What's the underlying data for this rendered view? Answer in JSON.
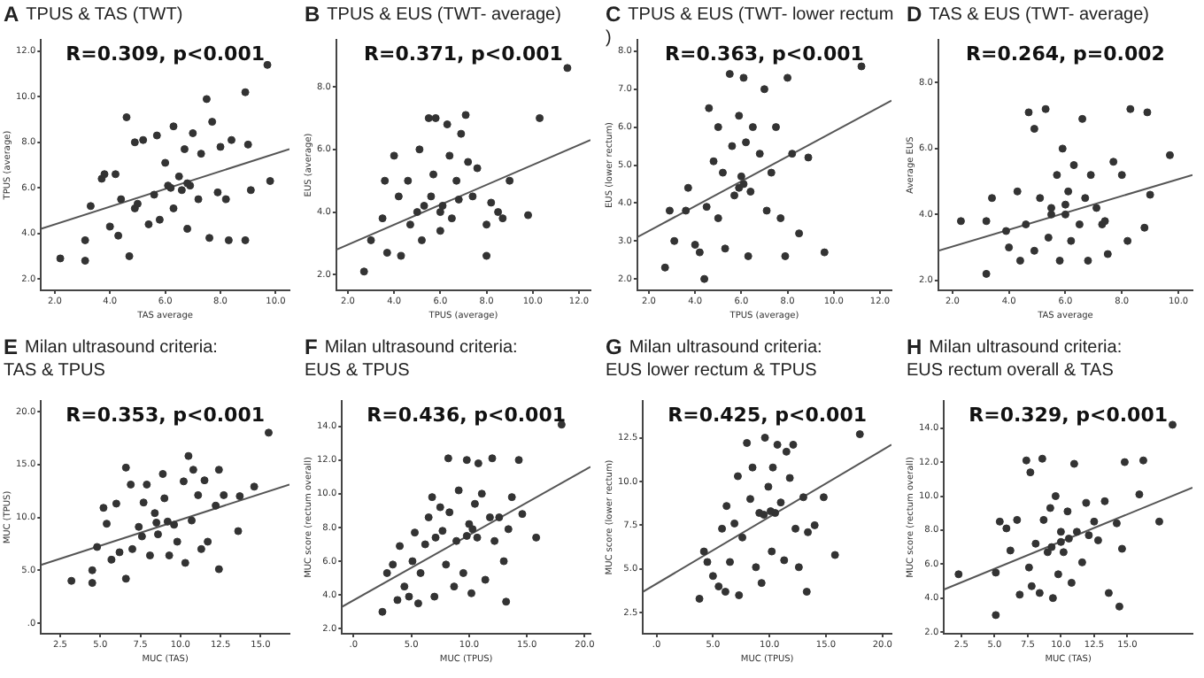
{
  "chart_data": [
    {
      "type": "scatter",
      "title": "TPUS & TAS (TWT)",
      "annotations": [
        "A",
        "R=0.309, p<0.001"
      ],
      "xlabel": "TAS average",
      "ylabel": "TPUS (average)",
      "xlim": [
        1.5,
        10.5
      ],
      "ylim": [
        1.5,
        12.5
      ],
      "xticks": [
        {
          "value": 2,
          "label": "2.0"
        },
        {
          "value": 4,
          "label": "4.0"
        },
        {
          "value": 6,
          "label": "6.0"
        },
        {
          "value": 8,
          "label": "8.0"
        },
        {
          "value": 10,
          "label": "10.0"
        }
      ],
      "yticks": [
        {
          "value": 2,
          "label": "2.0"
        },
        {
          "value": 4,
          "label": "4.0"
        },
        {
          "value": 6,
          "label": "6.0"
        },
        {
          "value": 8,
          "label": "8.0"
        },
        {
          "value": 10,
          "label": "10.0"
        },
        {
          "value": 12,
          "label": "12.0"
        }
      ],
      "series": [
        {
          "type": "scatter",
          "marker": "circle",
          "color": "#333333",
          "x": [
            2.2,
            3.1,
            3.1,
            3.3,
            3.7,
            3.8,
            4.2,
            4.0,
            4.3,
            4.4,
            4.7,
            4.6,
            4.9,
            4.9,
            5.2,
            5.4,
            5.7,
            5.8,
            6.0,
            6.1,
            6.3,
            6.3,
            6.5,
            6.7,
            6.8,
            6.9,
            7.0,
            7.2,
            7.3,
            7.5,
            7.6,
            7.7,
            7.9,
            8.0,
            8.2,
            8.3,
            8.4,
            8.9,
            8.9,
            9.0,
            9.1,
            9.7,
            9.8,
            6.2,
            6.6,
            5.6,
            6.8,
            5.0
          ],
          "values": [
            2.9,
            2.8,
            3.7,
            5.2,
            6.4,
            6.6,
            6.6,
            4.3,
            3.9,
            5.5,
            3.0,
            9.1,
            8.0,
            5.1,
            8.1,
            4.4,
            8.3,
            4.6,
            7.1,
            6.1,
            8.7,
            5.1,
            6.5,
            7.7,
            4.2,
            6.1,
            8.4,
            5.5,
            7.5,
            9.9,
            3.8,
            8.9,
            5.8,
            7.8,
            5.5,
            3.7,
            8.1,
            10.2,
            3.7,
            7.9,
            5.9,
            11.4,
            6.3,
            6.0,
            5.9,
            5.7,
            6.2,
            5.3
          ]
        },
        {
          "type": "line",
          "marker": "none",
          "color": "#555555",
          "x": [
            1.5,
            10.5
          ],
          "values": [
            4.2,
            7.7
          ]
        }
      ]
    },
    {
      "type": "scatter",
      "title": "TPUS & EUS (TWT- average)",
      "annotations": [
        "B",
        "R=0.371, p<0.001"
      ],
      "xlabel": "TPUS (average)",
      "ylabel": "EUS (average)",
      "xlim": [
        1.5,
        12.5
      ],
      "ylim": [
        1.5,
        9.5
      ],
      "xticks": [
        {
          "value": 2,
          "label": "2.0"
        },
        {
          "value": 4,
          "label": "4.0"
        },
        {
          "value": 6,
          "label": "6.0"
        },
        {
          "value": 8,
          "label": "8.0"
        },
        {
          "value": 10,
          "label": "10.0"
        },
        {
          "value": 12,
          "label": "12.0"
        }
      ],
      "yticks": [
        {
          "value": 2,
          "label": "2.0"
        },
        {
          "value": 4,
          "label": "4.0"
        },
        {
          "value": 6,
          "label": "6.0"
        },
        {
          "value": 8,
          "label": "8.0"
        }
      ],
      "series": [
        {
          "type": "scatter",
          "marker": "circle",
          "color": "#333333",
          "x": [
            2.7,
            3.0,
            3.5,
            3.6,
            3.7,
            4.0,
            4.2,
            4.3,
            4.6,
            4.7,
            5.0,
            5.1,
            5.2,
            5.5,
            5.6,
            5.7,
            5.8,
            6.0,
            6.1,
            6.3,
            6.4,
            6.5,
            6.7,
            6.9,
            7.1,
            7.2,
            7.4,
            7.6,
            8.0,
            8.0,
            8.2,
            8.5,
            8.7,
            9.0,
            9.8,
            10.3,
            11.5,
            6.0,
            5.3,
            6.8
          ],
          "values": [
            2.1,
            3.1,
            3.8,
            5.0,
            2.7,
            5.8,
            4.5,
            2.6,
            5.0,
            3.6,
            4.0,
            6.0,
            3.1,
            7.0,
            4.5,
            5.2,
            7.0,
            3.4,
            4.2,
            6.8,
            5.8,
            3.8,
            5.0,
            6.5,
            7.1,
            5.6,
            4.5,
            5.4,
            3.6,
            2.6,
            4.3,
            4.0,
            3.8,
            5.0,
            3.9,
            7.0,
            8.6,
            4.0,
            4.2,
            4.4
          ]
        },
        {
          "type": "line",
          "marker": "none",
          "color": "#555555",
          "x": [
            1.5,
            12.5
          ],
          "values": [
            2.8,
            6.3
          ]
        }
      ]
    },
    {
      "type": "scatter",
      "title": "TPUS & EUS (TWT- lower rectum )",
      "annotations": [
        "C",
        "R=0.363, p<0.001"
      ],
      "xlabel": "TPUS (average)",
      "ylabel": "EUS (lower rectum)",
      "xlim": [
        1.5,
        12.5
      ],
      "ylim": [
        1.7,
        8.3
      ],
      "xticks": [
        {
          "value": 2,
          "label": "2.0"
        },
        {
          "value": 4,
          "label": "4.0"
        },
        {
          "value": 6,
          "label": "6.0"
        },
        {
          "value": 8,
          "label": "8.0"
        },
        {
          "value": 10,
          "label": "10.0"
        },
        {
          "value": 12,
          "label": "12.0"
        }
      ],
      "yticks": [
        {
          "value": 2,
          "label": "2.0"
        },
        {
          "value": 3,
          "label": "3.0"
        },
        {
          "value": 4,
          "label": "4.0"
        },
        {
          "value": 5,
          "label": "5.0"
        },
        {
          "value": 6,
          "label": "6.0"
        },
        {
          "value": 7,
          "label": "7.0"
        },
        {
          "value": 8,
          "label": "8.0"
        }
      ],
      "series": [
        {
          "type": "scatter",
          "marker": "circle",
          "color": "#333333",
          "x": [
            2.7,
            2.9,
            3.1,
            3.6,
            3.7,
            4.0,
            4.2,
            4.4,
            4.5,
            4.6,
            4.8,
            5.0,
            5.0,
            5.2,
            5.3,
            5.5,
            5.6,
            5.7,
            5.9,
            6.0,
            6.1,
            6.2,
            6.3,
            6.4,
            6.5,
            6.8,
            7.0,
            7.1,
            7.3,
            7.5,
            7.7,
            8.0,
            7.9,
            8.2,
            8.5,
            8.9,
            9.6,
            11.2,
            5.9,
            6.1
          ],
          "values": [
            2.3,
            3.8,
            3.0,
            3.8,
            4.4,
            2.9,
            2.7,
            2.0,
            3.9,
            6.5,
            5.1,
            3.6,
            6.0,
            4.8,
            2.8,
            7.4,
            5.5,
            4.2,
            6.3,
            4.7,
            7.3,
            5.6,
            2.6,
            4.3,
            6.0,
            5.3,
            7.0,
            3.8,
            4.8,
            6.0,
            3.6,
            7.3,
            2.6,
            5.3,
            3.2,
            5.2,
            2.7,
            7.6,
            4.4,
            4.5
          ]
        },
        {
          "type": "line",
          "marker": "none",
          "color": "#555555",
          "x": [
            1.5,
            12.5
          ],
          "values": [
            3.1,
            6.7
          ]
        }
      ]
    },
    {
      "type": "scatter",
      "title": "TAS & EUS (TWT- average)",
      "annotations": [
        "D",
        "R=0.264, p=0.002"
      ],
      "xlabel": "TAS average",
      "ylabel": "Average EUS",
      "xlim": [
        1.5,
        10.5
      ],
      "ylim": [
        1.7,
        9.3
      ],
      "xticks": [
        {
          "value": 2,
          "label": "2.0"
        },
        {
          "value": 4,
          "label": "4.0"
        },
        {
          "value": 6,
          "label": "6.0"
        },
        {
          "value": 8,
          "label": "8.0"
        },
        {
          "value": 10,
          "label": "10.0"
        }
      ],
      "yticks": [
        {
          "value": 2,
          "label": "2.0"
        },
        {
          "value": 4,
          "label": "4.0"
        },
        {
          "value": 6,
          "label": "6.0"
        },
        {
          "value": 8,
          "label": "8.0"
        }
      ],
      "series": [
        {
          "type": "scatter",
          "marker": "circle",
          "color": "#333333",
          "x": [
            2.3,
            3.2,
            3.2,
            3.4,
            3.9,
            4.0,
            4.3,
            4.4,
            4.6,
            4.7,
            4.9,
            4.9,
            5.1,
            5.3,
            5.4,
            5.5,
            5.7,
            5.8,
            5.9,
            6.0,
            6.1,
            6.2,
            6.3,
            6.5,
            6.6,
            6.7,
            6.8,
            6.9,
            7.1,
            7.3,
            7.4,
            7.5,
            7.7,
            8.0,
            8.2,
            8.3,
            8.8,
            8.9,
            9.0,
            9.7,
            5.5,
            6.0
          ],
          "values": [
            3.8,
            2.2,
            3.8,
            4.5,
            3.5,
            3.0,
            4.7,
            2.6,
            3.7,
            7.1,
            6.6,
            2.9,
            4.5,
            7.2,
            3.3,
            4.2,
            5.2,
            2.6,
            6.0,
            4.0,
            4.7,
            3.2,
            5.5,
            3.7,
            6.9,
            4.5,
            2.6,
            5.2,
            4.2,
            3.7,
            3.8,
            2.8,
            5.6,
            5.2,
            3.2,
            7.2,
            3.6,
            7.1,
            4.6,
            5.8,
            4.0,
            4.3
          ]
        },
        {
          "type": "line",
          "marker": "none",
          "color": "#555555",
          "x": [
            1.5,
            10.5
          ],
          "values": [
            2.9,
            5.2
          ]
        }
      ]
    },
    {
      "type": "scatter",
      "title": "Milan ultrasound criteria:\nTAS & TPUS",
      "annotations": [
        "E",
        "R=0.353, p<0.001"
      ],
      "xlabel": "MUC (TAS)",
      "ylabel": "MUC (TPUS)",
      "xlim": [
        1.3,
        16.8
      ],
      "ylim": [
        -1,
        21
      ],
      "xticks": [
        {
          "value": 2.5,
          "label": "2.5"
        },
        {
          "value": 5,
          "label": "5.0"
        },
        {
          "value": 7.5,
          "label": "7.5"
        },
        {
          "value": 10,
          "label": "10.0"
        },
        {
          "value": 12.5,
          "label": "12.5"
        },
        {
          "value": 15,
          "label": "15.0"
        }
      ],
      "yticks": [
        {
          "value": 0,
          "label": ".0"
        },
        {
          "value": 5,
          "label": "5.0"
        },
        {
          "value": 10,
          "label": "10.0"
        },
        {
          "value": 15,
          "label": "15.0"
        },
        {
          "value": 20,
          "label": "20.0"
        }
      ],
      "series": [
        {
          "type": "scatter",
          "marker": "circle",
          "color": "#333333",
          "x": [
            3.2,
            4.5,
            4.5,
            4.8,
            5.2,
            5.4,
            5.7,
            6.0,
            6.2,
            6.6,
            6.6,
            6.9,
            7.0,
            7.4,
            7.7,
            7.9,
            8.1,
            8.4,
            8.6,
            8.9,
            9.0,
            9.3,
            9.6,
            9.8,
            10.2,
            10.3,
            10.5,
            10.7,
            10.8,
            11.1,
            11.3,
            11.5,
            11.7,
            12.2,
            12.4,
            12.4,
            12.7,
            13.6,
            13.7,
            14.6,
            15.5,
            8.5,
            9.2,
            7.6
          ],
          "values": [
            4.0,
            5.0,
            3.8,
            7.2,
            10.9,
            9.4,
            6.0,
            11.3,
            6.7,
            14.7,
            4.2,
            13.1,
            7.0,
            9.1,
            11.4,
            13.1,
            6.4,
            10.4,
            8.4,
            14.1,
            11.8,
            6.4,
            9.3,
            7.7,
            13.4,
            5.7,
            15.8,
            9.7,
            14.5,
            12.1,
            7.0,
            13.5,
            7.7,
            11.1,
            14.5,
            5.1,
            12.1,
            8.7,
            12.0,
            12.9,
            18.0,
            9.5,
            9.6,
            8.2
          ]
        },
        {
          "type": "line",
          "marker": "none",
          "color": "#555555",
          "x": [
            1.3,
            16.8
          ],
          "values": [
            5.5,
            13.1
          ]
        }
      ]
    },
    {
      "type": "scatter",
      "title": "Milan ultrasound criteria:\nEUS & TPUS",
      "annotations": [
        "F",
        "R=0.436, p<0.001"
      ],
      "xlabel": "MUC (TPUS)",
      "ylabel": "MUC score (rectum overall)",
      "xlim": [
        -1,
        20.5
      ],
      "ylim": [
        1.7,
        15.5
      ],
      "xticks": [
        {
          "value": 0,
          "label": ".0"
        },
        {
          "value": 5,
          "label": "5.0"
        },
        {
          "value": 10,
          "label": "10.0"
        },
        {
          "value": 15,
          "label": "15.0"
        },
        {
          "value": 20,
          "label": "20.0"
        }
      ],
      "yticks": [
        {
          "value": 2,
          "label": "2.0"
        },
        {
          "value": 4,
          "label": "4.0"
        },
        {
          "value": 6,
          "label": "6.0"
        },
        {
          "value": 8,
          "label": "8.0"
        },
        {
          "value": 10,
          "label": "10.0"
        },
        {
          "value": 12,
          "label": "12.0"
        },
        {
          "value": 14,
          "label": "14.0"
        }
      ],
      "series": [
        {
          "type": "scatter",
          "marker": "circle",
          "color": "#333333",
          "x": [
            2.5,
            2.9,
            3.4,
            3.8,
            4.0,
            4.4,
            4.8,
            5.1,
            5.3,
            5.6,
            5.8,
            6.2,
            6.5,
            6.8,
            7.0,
            7.1,
            7.5,
            7.7,
            8.0,
            8.2,
            8.3,
            8.7,
            8.9,
            9.1,
            9.5,
            9.8,
            10.0,
            10.2,
            10.5,
            10.7,
            10.8,
            11.1,
            11.4,
            11.8,
            12.0,
            12.2,
            12.6,
            13.0,
            13.2,
            13.4,
            13.7,
            14.3,
            14.6,
            15.8,
            18.0,
            9.8,
            10.3
          ],
          "values": [
            3.0,
            5.3,
            5.8,
            3.7,
            6.9,
            4.5,
            3.9,
            6.0,
            7.7,
            3.5,
            5.3,
            7.0,
            8.6,
            9.8,
            3.9,
            7.4,
            9.2,
            7.8,
            5.8,
            12.1,
            8.9,
            4.5,
            7.2,
            10.2,
            5.3,
            12.0,
            8.2,
            4.1,
            9.4,
            7.4,
            11.8,
            10.0,
            4.9,
            8.6,
            12.1,
            7.2,
            8.6,
            6.0,
            3.6,
            7.9,
            9.8,
            12.0,
            8.8,
            7.4,
            14.1,
            7.5,
            7.9
          ]
        },
        {
          "type": "line",
          "marker": "none",
          "color": "#555555",
          "x": [
            -1,
            20.5
          ],
          "values": [
            3.3,
            11.6
          ]
        }
      ]
    },
    {
      "type": "scatter",
      "title": "Milan ultrasound criteria:\nEUS lower rectum & TPUS",
      "annotations": [
        "G",
        "R=0.425, p<0.001"
      ],
      "xlabel": "MUC (TPUS)",
      "ylabel": "MUC score (lower rectum)",
      "xlim": [
        -1.2,
        20.8
      ],
      "ylim": [
        1.3,
        14.6
      ],
      "xticks": [
        {
          "value": 0,
          "label": ".0"
        },
        {
          "value": 5,
          "label": "5.0"
        },
        {
          "value": 10,
          "label": "10.0"
        },
        {
          "value": 15,
          "label": "15.0"
        },
        {
          "value": 20,
          "label": "20.0"
        }
      ],
      "yticks": [
        {
          "value": 2.5,
          "label": "2.5"
        },
        {
          "value": 5,
          "label": "5.0"
        },
        {
          "value": 7.5,
          "label": "7.5"
        },
        {
          "value": 10,
          "label": "10.0"
        },
        {
          "value": 12.5,
          "label": "12.5"
        }
      ],
      "series": [
        {
          "type": "scatter",
          "marker": "circle",
          "color": "#333333",
          "x": [
            3.8,
            4.2,
            4.5,
            5.0,
            5.5,
            5.8,
            6.1,
            6.2,
            6.5,
            6.9,
            7.2,
            7.3,
            7.6,
            8.0,
            8.3,
            8.5,
            8.8,
            9.1,
            9.3,
            9.6,
            9.9,
            10.2,
            10.3,
            10.5,
            10.7,
            11.0,
            11.3,
            11.5,
            11.8,
            12.1,
            12.3,
            12.6,
            13.0,
            13.3,
            13.4,
            14.0,
            14.8,
            15.8,
            18.0,
            9.5,
            10.1
          ],
          "values": [
            3.3,
            6.0,
            5.4,
            4.6,
            4.0,
            7.3,
            3.7,
            8.6,
            5.4,
            7.6,
            10.3,
            3.5,
            6.8,
            12.2,
            9.0,
            10.8,
            5.1,
            8.2,
            4.2,
            12.5,
            9.7,
            6.0,
            10.8,
            8.2,
            12.1,
            8.8,
            5.5,
            11.7,
            10.2,
            12.1,
            7.3,
            5.1,
            9.1,
            3.7,
            7.1,
            7.5,
            9.1,
            5.8,
            12.7,
            8.1,
            8.3
          ]
        },
        {
          "type": "line",
          "marker": "none",
          "color": "#555555",
          "x": [
            -1.2,
            20.8
          ],
          "values": [
            3.7,
            12.1
          ]
        }
      ]
    },
    {
      "type": "scatter",
      "title": "Milan ultrasound criteria:\nEUS rectum overall & TAS",
      "annotations": [
        "H",
        "R=0.329, p<0.001"
      ],
      "xlabel": "MUC (TAS)",
      "ylabel": "MUC score (rectum overall)",
      "xlim": [
        1.2,
        19.9
      ],
      "ylim": [
        1.9,
        15.6
      ],
      "xticks": [
        {
          "value": 2.5,
          "label": "2.5"
        },
        {
          "value": 5,
          "label": "5.0"
        },
        {
          "value": 7.5,
          "label": "7.5"
        },
        {
          "value": 10,
          "label": "10.0"
        },
        {
          "value": 12.5,
          "label": "12.5"
        },
        {
          "value": 15,
          "label": "15.0"
        }
      ],
      "yticks": [
        {
          "value": 2,
          "label": "2.0"
        },
        {
          "value": 4,
          "label": "4.0"
        },
        {
          "value": 6,
          "label": "6.0"
        },
        {
          "value": 8,
          "label": "8.0"
        },
        {
          "value": 10,
          "label": "10.0"
        },
        {
          "value": 12,
          "label": "12.0"
        },
        {
          "value": 14,
          "label": "14.0"
        }
      ],
      "series": [
        {
          "type": "scatter",
          "marker": "circle",
          "color": "#333333",
          "x": [
            2.3,
            5.1,
            5.1,
            5.4,
            5.9,
            6.2,
            6.7,
            6.9,
            7.4,
            7.6,
            7.7,
            7.8,
            8.1,
            8.4,
            8.6,
            8.7,
            9.0,
            9.2,
            9.4,
            9.6,
            9.8,
            10.0,
            10.2,
            10.5,
            10.8,
            11.0,
            11.2,
            11.6,
            11.9,
            12.1,
            12.5,
            12.8,
            13.3,
            13.6,
            14.2,
            14.4,
            14.6,
            14.8,
            15.9,
            16.2,
            17.4,
            18.4,
            10.0,
            10.6,
            9.3
          ],
          "values": [
            5.4,
            3.0,
            5.5,
            8.5,
            8.1,
            6.8,
            8.6,
            4.2,
            12.1,
            5.8,
            11.4,
            4.7,
            7.2,
            4.3,
            12.2,
            8.6,
            6.7,
            9.3,
            4.0,
            10.0,
            5.4,
            7.9,
            6.7,
            9.1,
            4.9,
            11.9,
            7.9,
            6.1,
            9.6,
            7.7,
            8.5,
            7.4,
            9.7,
            4.3,
            8.4,
            3.5,
            6.9,
            12.0,
            10.1,
            12.1,
            8.5,
            14.2,
            7.3,
            7.5,
            7.0
          ]
        },
        {
          "type": "line",
          "marker": "none",
          "color": "#555555",
          "x": [
            1.2,
            19.9
          ],
          "values": [
            4.5,
            10.5
          ]
        }
      ]
    }
  ]
}
